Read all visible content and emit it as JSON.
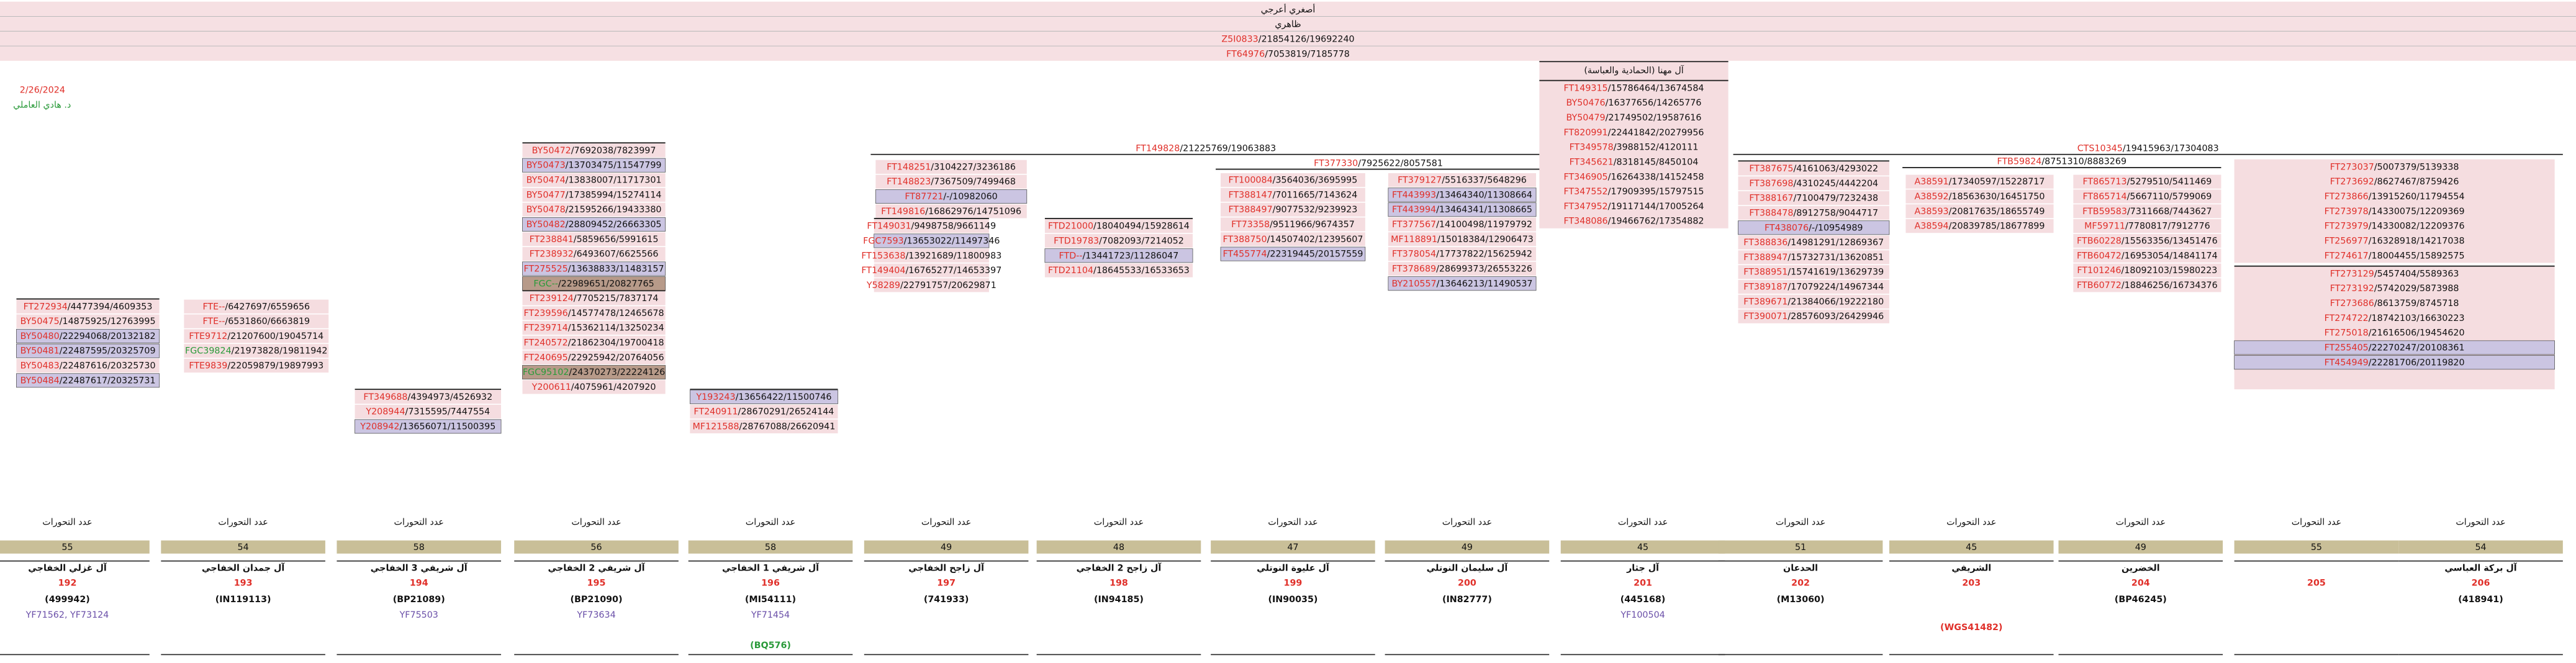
{
  "header": {
    "title": "أصغري أعرجي",
    "subtitle": "ظاهري",
    "rows": [
      {
        "code": "Z5I0833",
        "pos": "/21854126/19692240"
      },
      {
        "code": "FT64976",
        "pos": "/7053819/7185778"
      }
    ]
  },
  "date": "2/26/2024",
  "author": "د. هادي العاملي",
  "headers": [
    {
      "code": "FT149828",
      "pos": "/21225769/19063883"
    },
    {
      "code": "FT377330",
      "pos": "/7925622/8057581"
    },
    {
      "code": "CTS10345",
      "pos": "/19415963/17304083"
    },
    {
      "code": "FTB59824",
      "pos": "/8751310/8883269"
    }
  ],
  "blocks": [
    {
      "entries": [
        {
          "code": "FT272934",
          "pos": "/4477394/4609353",
          "bg": "pink"
        },
        {
          "code": "BY50475",
          "pos": "/14875925/12763995",
          "bg": "pink"
        },
        {
          "code": "BY50480",
          "pos": "/22294068/20132182",
          "bg": "purple"
        },
        {
          "code": "BY50481",
          "pos": "/22487595/20325709",
          "bg": "purple"
        },
        {
          "code": "BY50483",
          "pos": "/22487616/20325730",
          "bg": "pink"
        },
        {
          "code": "BY50484",
          "pos": "/22487617/20325731",
          "bg": "purple"
        }
      ]
    },
    {
      "entries": [
        {
          "code": "FTE--",
          "pos": "/6427697/6559656",
          "bg": "pink"
        },
        {
          "code": "FTE--",
          "pos": "/6531860/6663819",
          "bg": "pink"
        },
        {
          "code": "FTE9712",
          "pos": "/21207600/19045714",
          "bg": "pink"
        },
        {
          "code": "FGC39824",
          "pos": "/21973828/19811942",
          "bg": "pink",
          "code_color": "green"
        },
        {
          "code": "FTE9839",
          "pos": "/22059879/19897993",
          "bg": "pink"
        }
      ]
    },
    {
      "entries": [
        {
          "code": "FT349688",
          "pos": "/4394973/4526932",
          "bg": "pink"
        },
        {
          "code": "Y208944",
          "pos": "/7315595/7447554",
          "bg": "pink"
        },
        {
          "code": "Y208942",
          "pos": "/13656071/11500395",
          "bg": "purple"
        }
      ]
    },
    {
      "entries": [
        {
          "code": "BY50472",
          "pos": "/7692038/7823997",
          "bg": "pink"
        },
        {
          "code": "BY50473",
          "pos": "/13703475/11547799",
          "bg": "purple"
        },
        {
          "code": "BY50474",
          "pos": "/13838007/11717301",
          "bg": "pink"
        },
        {
          "code": "BY50477",
          "pos": "/17385994/15274114",
          "bg": "pink"
        },
        {
          "code": "BY50478",
          "pos": "/21595266/19433380",
          "bg": "pink"
        },
        {
          "code": "BY50482",
          "pos": "/28809452/26663305",
          "bg": "purple"
        },
        {
          "code": "FT238841",
          "pos": "/5859656/5991615",
          "bg": "pink"
        },
        {
          "code": "FT238932",
          "pos": "/6493607/6625566",
          "bg": "pink"
        },
        {
          "code": "FT275525",
          "pos": "/13638833/11483157",
          "bg": "purple"
        },
        {
          "code": "FGC--",
          "pos": "/22989651/20827765",
          "bg": "dark",
          "code_color": "green"
        }
      ]
    },
    {
      "entries": [
        {
          "code": "FT239124",
          "pos": "/7705215/7837174",
          "bg": "pink"
        },
        {
          "code": "FT239596",
          "pos": "/14577478/12465678",
          "bg": "pink"
        },
        {
          "code": "FT239714",
          "pos": "/15362114/13250234",
          "bg": "pink"
        },
        {
          "code": "FT240572",
          "pos": "/21862304/19700418",
          "bg": "pink"
        },
        {
          "code": "FT240695",
          "pos": "/22925942/20764056",
          "bg": "pink"
        },
        {
          "code": "FGC95102",
          "pos": "/24370273/22224126",
          "bg": "dark",
          "code_color": "green"
        },
        {
          "code": "Y200611",
          "pos": "/4075961/4207920",
          "bg": "pink"
        }
      ]
    },
    {
      "entries": [
        {
          "code": "Y193243",
          "pos": "/13656422/11500746",
          "bg": "purple"
        },
        {
          "code": "FT240911",
          "pos": "/28670291/26524144",
          "bg": "pink"
        },
        {
          "code": "MF121588",
          "pos": "/28767088/26620941",
          "bg": "pink"
        }
      ]
    },
    {
      "entries": [
        {
          "code": "FT148251",
          "pos": "/3104227/3236186",
          "bg": "pink"
        },
        {
          "code": "FT148823",
          "pos": "/7367509/7499468",
          "bg": "pink"
        },
        {
          "code": "FT87721",
          "pos": "/-/10982060",
          "bg": "purple"
        },
        {
          "code": "FT149816",
          "pos": "/16862976/14751096",
          "bg": "pink"
        }
      ]
    },
    {
      "entries": [
        {
          "code": "FT149031",
          "pos": "/9498758/9661149",
          "bg": "pink"
        },
        {
          "code": "FGC7593",
          "pos": "/13653022/11497346",
          "bg": "purple"
        },
        {
          "code": "FT153638",
          "pos": "/13921689/11800983",
          "bg": "pink"
        },
        {
          "code": "FT149404",
          "pos": "/16765277/14653397",
          "bg": "pink"
        },
        {
          "code": "Y58289",
          "pos": "/22791757/20629871",
          "bg": "pink"
        }
      ]
    },
    {
      "entries": [
        {
          "code": "FTD21000",
          "pos": "/18040494/15928614",
          "bg": "pink"
        },
        {
          "code": "FTD19783",
          "pos": "/7082093/7214052",
          "bg": "pink"
        },
        {
          "code": "FTD--",
          "pos": "/13441723/11286047",
          "bg": "purple"
        },
        {
          "code": "FTD21104",
          "pos": "/18645533/16533653",
          "bg": "pink"
        }
      ]
    },
    {
      "entries": [
        {
          "code": "FT100084",
          "pos": "/3564036/3695995",
          "bg": "pink"
        },
        {
          "code": "FT388147",
          "pos": "/7011665/7143624",
          "bg": "pink"
        },
        {
          "code": "FT388497",
          "pos": "/9077532/9239923",
          "bg": "pink"
        },
        {
          "code": "FT73358",
          "pos": "/9511966/9674357",
          "bg": "pink"
        },
        {
          "code": "FT388750",
          "pos": "/14507402/12395607",
          "bg": "pink"
        },
        {
          "code": "FT455774",
          "pos": "/22319445/20157559",
          "bg": "purple"
        }
      ]
    },
    {
      "entries": [
        {
          "code": "FT379127",
          "pos": "/5516337/5648296",
          "bg": "pink"
        },
        {
          "code": "FT443993",
          "pos": "/13464340/11308664",
          "bg": "purple"
        },
        {
          "code": "FT443994",
          "pos": "/13464341/11308665",
          "bg": "purple"
        },
        {
          "code": "FT377567",
          "pos": "/14100498/11979792",
          "bg": "pink"
        },
        {
          "code": "MF118891",
          "pos": "/15018384/12906473",
          "bg": "pink"
        },
        {
          "code": "FT378054",
          "pos": "/17737822/15625942",
          "bg": "pink"
        },
        {
          "code": "FT378689",
          "pos": "/28699373/26553226",
          "bg": "pink"
        },
        {
          "code": "BY210557",
          "pos": "/13646213/11490537",
          "bg": "purple"
        }
      ]
    },
    {
      "title": "آل مهنا (الحمادية والعباسة)",
      "entries": [
        {
          "code": "FT149315",
          "pos": "/15786464/13674584",
          "bg": "pink"
        },
        {
          "code": "BY50476",
          "pos": "/16377656/14265776",
          "bg": "pink"
        },
        {
          "code": "BY50479",
          "pos": "/21749502/19587616",
          "bg": "pink"
        },
        {
          "code": "FT820991",
          "pos": "/22441842/20279956",
          "bg": "pink"
        },
        {
          "code": "FT349578",
          "pos": "/3988152/4120111",
          "bg": "pink"
        },
        {
          "code": "FT345621",
          "pos": "/8318145/8450104",
          "bg": "pink"
        },
        {
          "code": "FT346905",
          "pos": "/16264338/14152458",
          "bg": "pink"
        },
        {
          "code": "FT347552",
          "pos": "/17909395/15797515",
          "bg": "pink"
        },
        {
          "code": "FT347952",
          "pos": "/19117144/17005264",
          "bg": "pink"
        },
        {
          "code": "FT348086",
          "pos": "/19466762/17354882",
          "bg": "pink"
        }
      ]
    },
    {
      "entries": [
        {
          "code": "FT387675",
          "pos": "/4161063/4293022",
          "bg": "pink"
        },
        {
          "code": "FT387698",
          "pos": "/4310245/4442204",
          "bg": "pink"
        },
        {
          "code": "FT388167",
          "pos": "/7100479/7232438",
          "bg": "pink"
        },
        {
          "code": "FT388478",
          "pos": "/8912758/9044717",
          "bg": "pink"
        },
        {
          "code": "FT438076",
          "pos": "/-/10954989",
          "bg": "purple"
        },
        {
          "code": "FT388836",
          "pos": "/14981291/12869367",
          "bg": "pink"
        },
        {
          "code": "FT388947",
          "pos": "/15732731/13620851",
          "bg": "pink"
        },
        {
          "code": "FT388951",
          "pos": "/15741619/13629739",
          "bg": "pink"
        },
        {
          "code": "FT389187",
          "pos": "/17079224/14967344",
          "bg": "pink"
        },
        {
          "code": "FT389671",
          "pos": "/21384066/19222180",
          "bg": "pink"
        },
        {
          "code": "FT390071",
          "pos": "/28576093/26429946",
          "bg": "pink"
        }
      ]
    },
    {
      "entries": [
        {
          "code": "A38591",
          "pos": "/17340597/15228717",
          "bg": "pink"
        },
        {
          "code": "A38592",
          "pos": "/18563630/16451750",
          "bg": "pink"
        },
        {
          "code": "A38593",
          "pos": "/20817635/18655749",
          "bg": "pink"
        },
        {
          "code": "A38594",
          "pos": "/20839785/18677899",
          "bg": "pink"
        }
      ]
    },
    {
      "entries": [
        {
          "code": "FT865713",
          "pos": "/5279510/5411469",
          "bg": "pink"
        },
        {
          "code": "FT865714",
          "pos": "/5667110/5799069",
          "bg": "pink"
        },
        {
          "code": "FTB59583",
          "pos": "/7311668/7443627",
          "bg": "pink"
        },
        {
          "code": "MF59711",
          "pos": "/7780817/7912776",
          "bg": "pink"
        },
        {
          "code": "FTB60228",
          "pos": "/15563356/13451476",
          "bg": "pink"
        },
        {
          "code": "FTB60472",
          "pos": "/16953054/14841174",
          "bg": "pink"
        },
        {
          "code": "FT101246",
          "pos": "/18092103/15980223",
          "bg": "pink"
        },
        {
          "code": "FTB60772",
          "pos": "/18846256/16734376",
          "bg": "pink"
        }
      ]
    },
    {
      "entries": [
        {
          "code": "FT273037",
          "pos": "/5007379/5139338",
          "bg": "pink"
        },
        {
          "code": "FT273692",
          "pos": "/8627467/8759426",
          "bg": "pink"
        },
        {
          "code": "FT273866",
          "pos": "/13915260/11794554",
          "bg": "pink"
        },
        {
          "code": "FT273978",
          "pos": "/14330075/12209369",
          "bg": "pink"
        },
        {
          "code": "FT273979",
          "pos": "/14330082/12209376",
          "bg": "pink"
        },
        {
          "code": "FT256977",
          "pos": "/16328918/14217038",
          "bg": "pink"
        },
        {
          "code": "FT274617",
          "pos": "/18004455/15892575",
          "bg": "pink"
        }
      ]
    },
    {
      "entries": [
        {
          "code": "FT273129",
          "pos": "/5457404/5589363",
          "bg": "pink"
        },
        {
          "code": "FT273192",
          "pos": "/5742029/5873988",
          "bg": "pink"
        },
        {
          "code": "FT273686",
          "pos": "/8613759/8745718",
          "bg": "pink"
        },
        {
          "code": "FT274722",
          "pos": "/18742103/16630223",
          "bg": "pink"
        },
        {
          "code": "FT275018",
          "pos": "/21616506/19454620",
          "bg": "pink"
        },
        {
          "code": "FT255405",
          "pos": "/22270247/20108361",
          "bg": "purple"
        },
        {
          "code": "FT454949",
          "pos": "/22281706/20119820",
          "bg": "purple"
        }
      ]
    }
  ],
  "columns_label": "عدد التحورات",
  "columns": [
    {
      "count": 55,
      "name": "آل غزلي الخفاجي",
      "number": 192,
      "code": "(499942)",
      "snps": "YF71562, YF73124"
    },
    {
      "count": 54,
      "name": "آل جمدان الخفاجي",
      "number": 193,
      "code": "(IN119113)"
    },
    {
      "count": 58,
      "name": "آل شريفي 3 الخفاجي",
      "number": 194,
      "code": "(BP21089)",
      "snps": "YF75503"
    },
    {
      "count": 56,
      "name": "آل شريفي 2 الخفاجي",
      "number": 195,
      "code": "(BP21090)",
      "snps": "YF73634"
    },
    {
      "count": 58,
      "name": "آل شريفي 1 الخفاجي",
      "number": 196,
      "code": "(MI54111)",
      "snps": "YF71454",
      "extra": "(BQ576)",
      "extra_color": "green"
    },
    {
      "count": 49,
      "name": "آل زاجح الخفاجي",
      "number": 197,
      "code": "(741933)"
    },
    {
      "count": 48,
      "name": "آل زاجح 2 الخفاجي",
      "number": 198,
      "code": "(IN94185)"
    },
    {
      "count": 47,
      "name": "آل عليوة النوتلي",
      "number": 199,
      "code": "(IN90035)"
    },
    {
      "count": 49,
      "name": "آل سليمان النوتلي",
      "number": 200,
      "code": "(IN82777)"
    },
    {
      "count": 45,
      "name": "آل جثار",
      "number": 201,
      "code": "(445168)",
      "snps": "YF100504"
    },
    {
      "count": 51,
      "name": "الحدعان",
      "number": 202,
      "code": "(M13060)"
    },
    {
      "count": 45,
      "name": "الشريفي",
      "number": 203,
      "extra": "(WGS41482)",
      "extra_color": "red"
    },
    {
      "count": 49,
      "name": "الخضرين",
      "number": 204,
      "code": "(BP46245)"
    },
    {
      "count": 55,
      "number": 205
    },
    {
      "count": 54,
      "name": "آل بركة العباسي",
      "number": 206,
      "code": "(418941)"
    }
  ]
}
